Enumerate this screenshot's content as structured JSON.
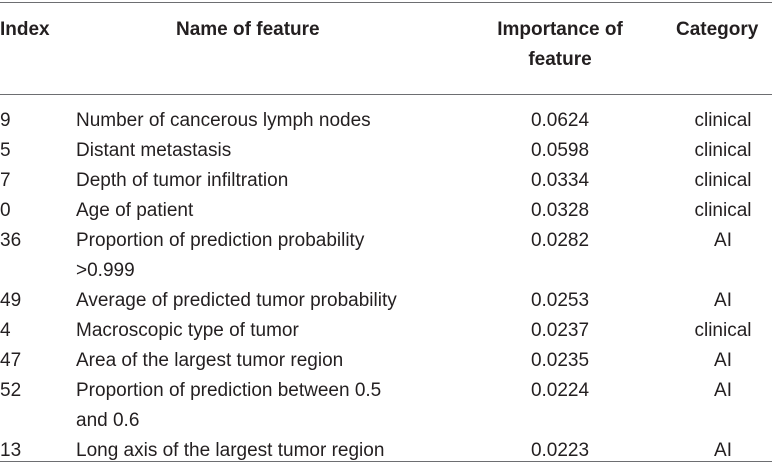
{
  "table": {
    "headers": {
      "index": "Index",
      "name": "Name of feature",
      "importance_line1": "Importance of",
      "importance_line2": "feature",
      "category": "Category"
    },
    "rows": [
      {
        "index": "9",
        "name_lines": [
          "Number of cancerous lymph nodes"
        ],
        "importance": "0.0624",
        "category": "clinical"
      },
      {
        "index": "5",
        "name_lines": [
          "Distant metastasis"
        ],
        "importance": "0.0598",
        "category": "clinical"
      },
      {
        "index": "7",
        "name_lines": [
          "Depth of tumor infiltration"
        ],
        "importance": "0.0334",
        "category": "clinical"
      },
      {
        "index": "0",
        "name_lines": [
          "Age of patient"
        ],
        "importance": "0.0328",
        "category": "clinical"
      },
      {
        "index": "36",
        "name_lines": [
          "Proportion of prediction probability",
          ">0.999"
        ],
        "importance": "0.0282",
        "category": "AI"
      },
      {
        "index": "49",
        "name_lines": [
          "Average of predicted tumor probability"
        ],
        "importance": "0.0253",
        "category": "AI"
      },
      {
        "index": "4",
        "name_lines": [
          "Macroscopic type of tumor"
        ],
        "importance": "0.0237",
        "category": "clinical"
      },
      {
        "index": "47",
        "name_lines": [
          "Area of the largest tumor region"
        ],
        "importance": "0.0235",
        "category": "AI"
      },
      {
        "index": "52",
        "name_lines": [
          "Proportion of prediction between 0.5",
          "and 0.6"
        ],
        "importance": "0.0224",
        "category": "AI"
      },
      {
        "index": "13",
        "name_lines": [
          "Long axis of the largest tumor region"
        ],
        "importance": "0.0223",
        "category": "AI"
      }
    ]
  }
}
